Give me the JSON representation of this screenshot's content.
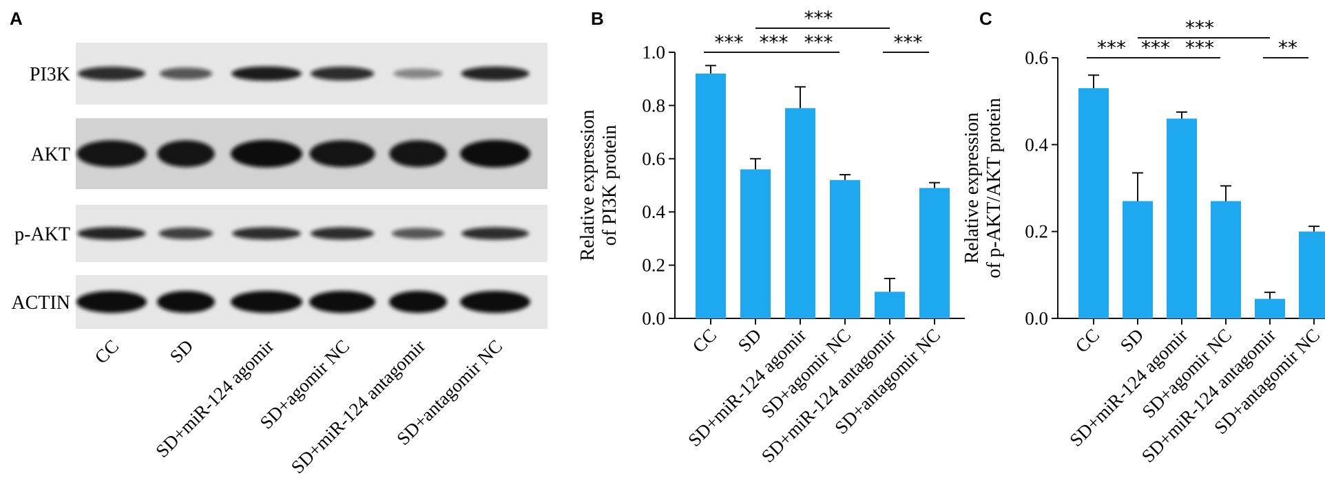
{
  "panels": {
    "A": {
      "letter": "A",
      "blots": [
        "PI3K",
        "AKT",
        "p-AKT",
        "ACTIN"
      ],
      "lanes": [
        "CC",
        "SD",
        "SD+miR-124 agomir",
        "SD+agomir NC",
        "SD+miR-124 antagomir",
        "SD+antagomir NC"
      ],
      "band_intensity": {
        "PI3K": [
          0.8,
          0.55,
          0.9,
          0.8,
          0.25,
          0.85
        ],
        "AKT": [
          0.95,
          0.95,
          1.0,
          0.95,
          0.95,
          1.0
        ],
        "p-AKT": [
          0.85,
          0.7,
          0.8,
          0.8,
          0.55,
          0.8
        ],
        "ACTIN": [
          1.0,
          1.0,
          1.0,
          1.0,
          1.0,
          1.0
        ]
      }
    },
    "B": {
      "letter": "B"
    },
    "C": {
      "letter": "C"
    }
  },
  "colors": {
    "bar": "#1ea8f0",
    "axis": "#111111",
    "blot_background": "#e6e6e6",
    "band": "#111111"
  },
  "chart_data": [
    {
      "type": "bar",
      "panel": "B",
      "categories": [
        "CC",
        "SD",
        "SD+miR-124 agomir",
        "SD+agomir NC",
        "SD+miR-124 antagomir",
        "SD+antagomir NC"
      ],
      "values": [
        0.92,
        0.56,
        0.79,
        0.52,
        0.1,
        0.49
      ],
      "errors": [
        0.03,
        0.04,
        0.08,
        0.02,
        0.05,
        0.02
      ],
      "ylabel": [
        "Relative expression",
        "of PI3K protein"
      ],
      "ylim": [
        0,
        1.0
      ],
      "yticks": [
        "0.0",
        "0.2",
        "0.4",
        "0.6",
        "0.8",
        "1.0"
      ],
      "grid": false,
      "significance": [
        {
          "from": 0,
          "to": 1,
          "label": "***",
          "level": 0
        },
        {
          "from": 1,
          "to": 2,
          "label": "***",
          "level": 0
        },
        {
          "from": 2,
          "to": 3,
          "label": "***",
          "level": 0
        },
        {
          "from": 1,
          "to": 4,
          "label": "***",
          "level": 1
        },
        {
          "from": 4,
          "to": 5,
          "label": "***",
          "level": 0
        }
      ]
    },
    {
      "type": "bar",
      "panel": "C",
      "categories": [
        "CC",
        "SD",
        "SD+miR-124 agomir",
        "SD+agomir NC",
        "SD+miR-124 antagomir",
        "SD+antagomir NC"
      ],
      "values": [
        0.53,
        0.27,
        0.46,
        0.27,
        0.045,
        0.2
      ],
      "errors": [
        0.03,
        0.065,
        0.015,
        0.035,
        0.015,
        0.012
      ],
      "ylabel": [
        "Relative expression",
        "of p-AKT/AKT protein"
      ],
      "ylim": [
        0,
        0.6
      ],
      "yticks": [
        "0.0",
        "0.2",
        "0.4",
        "0.6"
      ],
      "grid": false,
      "significance": [
        {
          "from": 0,
          "to": 1,
          "label": "***",
          "level": 0
        },
        {
          "from": 1,
          "to": 2,
          "label": "***",
          "level": 0
        },
        {
          "from": 2,
          "to": 3,
          "label": "***",
          "level": 0
        },
        {
          "from": 1,
          "to": 4,
          "label": "***",
          "level": 1
        },
        {
          "from": 4,
          "to": 5,
          "label": "**",
          "level": 0
        }
      ]
    }
  ]
}
